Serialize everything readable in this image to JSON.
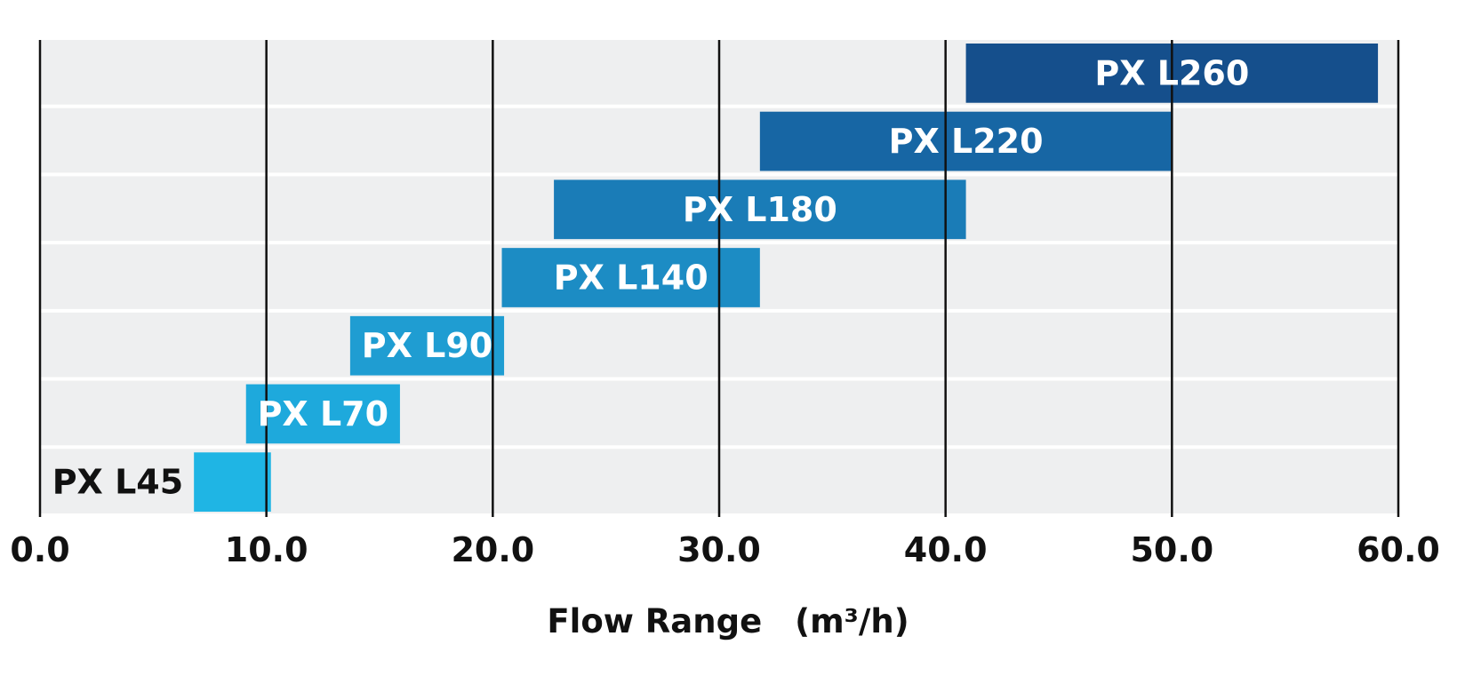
{
  "chart_data": {
    "type": "bar",
    "orientation": "horizontal-range",
    "title": "",
    "xlabel": "Flow Range　(m³/h)",
    "ylabel": "",
    "xlim": [
      0,
      60
    ],
    "x_ticks": [
      "0.0",
      "10.0",
      "20.0",
      "30.0",
      "40.0",
      "50.0",
      "60.0"
    ],
    "grid": "vertical lines at each tick",
    "categories": [
      "PX L45",
      "PX L70",
      "PX L90",
      "PX L140",
      "PX L180",
      "PX L220",
      "PX L260"
    ],
    "series": [
      {
        "ranges": [
          [
            6.8,
            10.2
          ],
          [
            9.1,
            15.9
          ],
          [
            13.7,
            20.5
          ],
          [
            20.4,
            31.8
          ],
          [
            22.7,
            40.9
          ],
          [
            31.8,
            50.0
          ],
          [
            40.9,
            59.1
          ]
        ]
      }
    ],
    "bar_colors": [
      "#1fb5e4",
      "#1ea9dc",
      "#1f9dd2",
      "#1c8cc4",
      "#1a7cb7",
      "#1766a4",
      "#154f8c"
    ]
  }
}
